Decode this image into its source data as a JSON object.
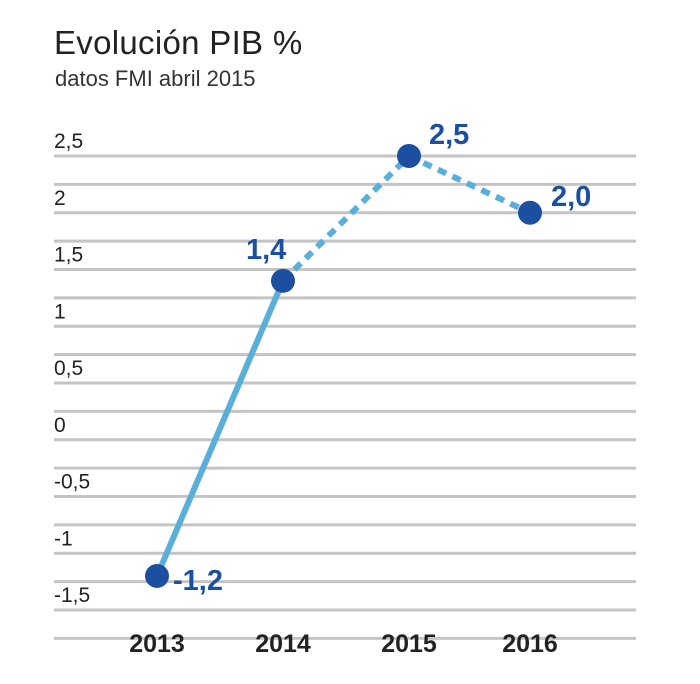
{
  "title": "Evolución PIB %",
  "subtitle": "datos FMI abril 2015",
  "chart_data": {
    "type": "line",
    "title": "Evolución PIB %",
    "subtitle": "datos FMI abril 2015",
    "categories": [
      "2013",
      "2014",
      "2015",
      "2016"
    ],
    "values": [
      -1.2,
      1.4,
      2.5,
      2.0
    ],
    "value_labels": [
      "-1,2",
      "1,4",
      "2,5",
      "2,0"
    ],
    "segment_styles": [
      "solid",
      "dashed",
      "dashed"
    ],
    "ylim": [
      -1.75,
      2.75
    ],
    "yticks": [
      2.5,
      2,
      1.5,
      1,
      0.5,
      0,
      -0.5,
      -1,
      -1.5
    ],
    "ytick_labels": [
      "2,5",
      "2",
      "1,5",
      "1",
      "0,5",
      "0",
      "-0,5",
      "-1",
      "-1,5"
    ],
    "grid": true,
    "colors": {
      "line": "#5aafda",
      "marker": "#1d4fa0",
      "label": "#1d4fa0",
      "grid": "#c4c4c4"
    }
  }
}
